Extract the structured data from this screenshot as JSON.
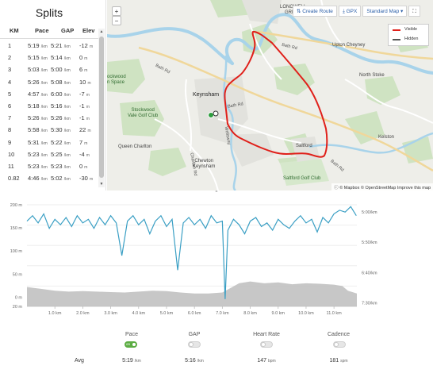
{
  "splits": {
    "title": "Splits",
    "headers": {
      "km": "KM",
      "pace": "Pace",
      "gap": "GAP",
      "elev": "Elev"
    },
    "rows": [
      {
        "km": "1",
        "pace": "5:19",
        "pace_unit": "/km",
        "gap": "5:21",
        "gap_unit": "/km",
        "elev": "-12",
        "elev_unit": "m"
      },
      {
        "km": "2",
        "pace": "5:15",
        "pace_unit": "/km",
        "gap": "5:14",
        "gap_unit": "/km",
        "elev": "0",
        "elev_unit": "m"
      },
      {
        "km": "3",
        "pace": "5:03",
        "pace_unit": "/km",
        "gap": "5:00",
        "gap_unit": "/km",
        "elev": "6",
        "elev_unit": "m"
      },
      {
        "km": "4",
        "pace": "5:26",
        "pace_unit": "/km",
        "gap": "5:08",
        "gap_unit": "/km",
        "elev": "10",
        "elev_unit": "m"
      },
      {
        "km": "5",
        "pace": "4:57",
        "pace_unit": "/km",
        "gap": "6:00",
        "gap_unit": "/km",
        "elev": "-7",
        "elev_unit": "m"
      },
      {
        "km": "6",
        "pace": "5:18",
        "pace_unit": "/km",
        "gap": "5:16",
        "gap_unit": "/km",
        "elev": "-1",
        "elev_unit": "m"
      },
      {
        "km": "7",
        "pace": "5:26",
        "pace_unit": "/km",
        "gap": "5:26",
        "gap_unit": "/km",
        "elev": "-1",
        "elev_unit": "m"
      },
      {
        "km": "8",
        "pace": "5:58",
        "pace_unit": "/km",
        "gap": "5:30",
        "gap_unit": "/km",
        "elev": "22",
        "elev_unit": "m"
      },
      {
        "km": "9",
        "pace": "5:31",
        "pace_unit": "/km",
        "gap": "5:22",
        "gap_unit": "/km",
        "elev": "7",
        "elev_unit": "m"
      },
      {
        "km": "10",
        "pace": "5:23",
        "pace_unit": "/km",
        "gap": "5:25",
        "gap_unit": "/km",
        "elev": "-4",
        "elev_unit": "m"
      },
      {
        "km": "11",
        "pace": "5:23",
        "pace_unit": "/km",
        "gap": "5:23",
        "gap_unit": "/km",
        "elev": "0",
        "elev_unit": "m"
      },
      {
        "km": "0.82",
        "pace": "4:46",
        "pace_unit": "/km",
        "gap": "5:02",
        "gap_unit": "/km",
        "elev": "-30",
        "elev_unit": "m"
      }
    ]
  },
  "map": {
    "zoom_in": "+",
    "zoom_out": "−",
    "toolbar": {
      "create_route": "Create Route",
      "gpx": "GPX",
      "map_style": "Standard Map",
      "fullscreen": "⛶"
    },
    "legend": {
      "visible": "Visible",
      "hidden": "Hidden",
      "visible_color": "#e0201a",
      "hidden_color": "#555555"
    },
    "labels": {
      "longwell_green": "LONGWELL\nGREEN",
      "keynsham": "Keynsham",
      "bath_rd_1": "Bath Rd",
      "bath_rd_2": "Bath Rd",
      "bath_rd_3": "Bath Rd",
      "upton_cheyney": "Upton Cheyney",
      "north_stoke": "North Stoke",
      "stockwood_open_space": "ockwood\nn Space",
      "stockwood_vale": "Stockwood\nVale Golf Club",
      "queen_charlton": "Queen Charlton",
      "chewton_keynsham": "Chewton\nKeynsham",
      "saltford": "Saltford",
      "saltford_golf": "Saltford Golf Club",
      "kelston": "Kelston",
      "charlton_rd": "Charlton Rd",
      "wellsway": "Wellsway"
    },
    "attribution": "© Mapbox © OpenStreetMap Improve this map",
    "route_color": "#e0201a"
  },
  "chart_data": {
    "type": "line",
    "xlabel": "",
    "x_ticks": [
      "1.0 km",
      "2.0 km",
      "3.0 km",
      "4.0 km",
      "5.0 km",
      "6.0 km",
      "7.0 km",
      "8.0 km",
      "9.0 km",
      "10.0 km",
      "11.0 km"
    ],
    "x_range": [
      0,
      11.82
    ],
    "left_axis": {
      "ticks": [
        "20 m",
        "0 m",
        "50 m",
        "100 m",
        "150 m",
        "200 m"
      ],
      "label": ""
    },
    "right_axis": {
      "ticks": [
        "5:00/km",
        "5:50/km",
        "6:40/km",
        "7:30/km"
      ],
      "label": ""
    },
    "series": [
      {
        "color": "#3a9fc4",
        "x": [
          0.0,
          0.2,
          0.4,
          0.6,
          0.8,
          1.0,
          1.2,
          1.4,
          1.6,
          1.8,
          2.0,
          2.2,
          2.4,
          2.6,
          2.8,
          3.0,
          3.2,
          3.4,
          3.6,
          3.8,
          4.0,
          4.2,
          4.4,
          4.6,
          4.8,
          5.0,
          5.2,
          5.4,
          5.6,
          5.8,
          6.0,
          6.2,
          6.4,
          6.6,
          6.8,
          7.0,
          7.1,
          7.2,
          7.4,
          7.6,
          7.8,
          8.0,
          8.2,
          8.4,
          8.6,
          8.8,
          9.0,
          9.2,
          9.4,
          9.6,
          9.8,
          10.0,
          10.2,
          10.4,
          10.6,
          10.8,
          11.0,
          11.2,
          11.4,
          11.6,
          11.8
        ],
        "y": [
          5.25,
          5.1,
          5.3,
          5.05,
          5.45,
          5.2,
          5.35,
          5.15,
          5.4,
          5.1,
          5.3,
          5.2,
          5.45,
          5.15,
          5.35,
          5.1,
          5.3,
          6.2,
          5.25,
          5.1,
          5.35,
          5.2,
          5.6,
          5.25,
          5.1,
          5.4,
          5.2,
          6.6,
          5.3,
          5.15,
          5.35,
          5.2,
          5.45,
          5.1,
          5.3,
          5.25,
          7.4,
          5.5,
          5.2,
          5.35,
          5.6,
          5.25,
          5.15,
          5.4,
          5.3,
          5.5,
          5.2,
          5.35,
          5.45,
          5.25,
          5.1,
          5.3,
          5.2,
          5.55,
          5.15,
          5.3,
          5.05,
          4.95,
          5.0,
          4.85,
          5.1
        ]
      },
      {
        "color": "#bdbdbd",
        "x": [
          0,
          0.5,
          1.0,
          1.5,
          2.0,
          2.5,
          3.0,
          3.5,
          4.0,
          4.5,
          5.0,
          5.5,
          6.0,
          6.5,
          7.0,
          7.3,
          7.6,
          8.0,
          8.5,
          9.0,
          9.5,
          10.0,
          10.5,
          11.0,
          11.3,
          11.5,
          11.82
        ],
        "y": [
          22,
          18,
          14,
          12,
          13,
          12,
          11,
          10,
          12,
          14,
          13,
          10,
          8,
          8,
          10,
          20,
          30,
          34,
          30,
          32,
          28,
          30,
          29,
          27,
          24,
          14,
          8
        ]
      }
    ]
  },
  "stats": {
    "pace": {
      "label": "Pace",
      "on": true,
      "toggle_text": "on",
      "avg": "5:19",
      "avg_unit": "/km"
    },
    "gap": {
      "label": "GAP",
      "on": false,
      "avg": "5:16",
      "avg_unit": "/km"
    },
    "heart_rate": {
      "label": "Heart Rate",
      "on": false,
      "avg": "147",
      "avg_unit": "bpm"
    },
    "cadence": {
      "label": "Cadence",
      "on": false,
      "avg": "181",
      "avg_unit": "spm"
    },
    "avg_label": "Avg"
  },
  "icons": {
    "handle": "=",
    "scroll_up": "▲",
    "scroll_down": "▼"
  }
}
